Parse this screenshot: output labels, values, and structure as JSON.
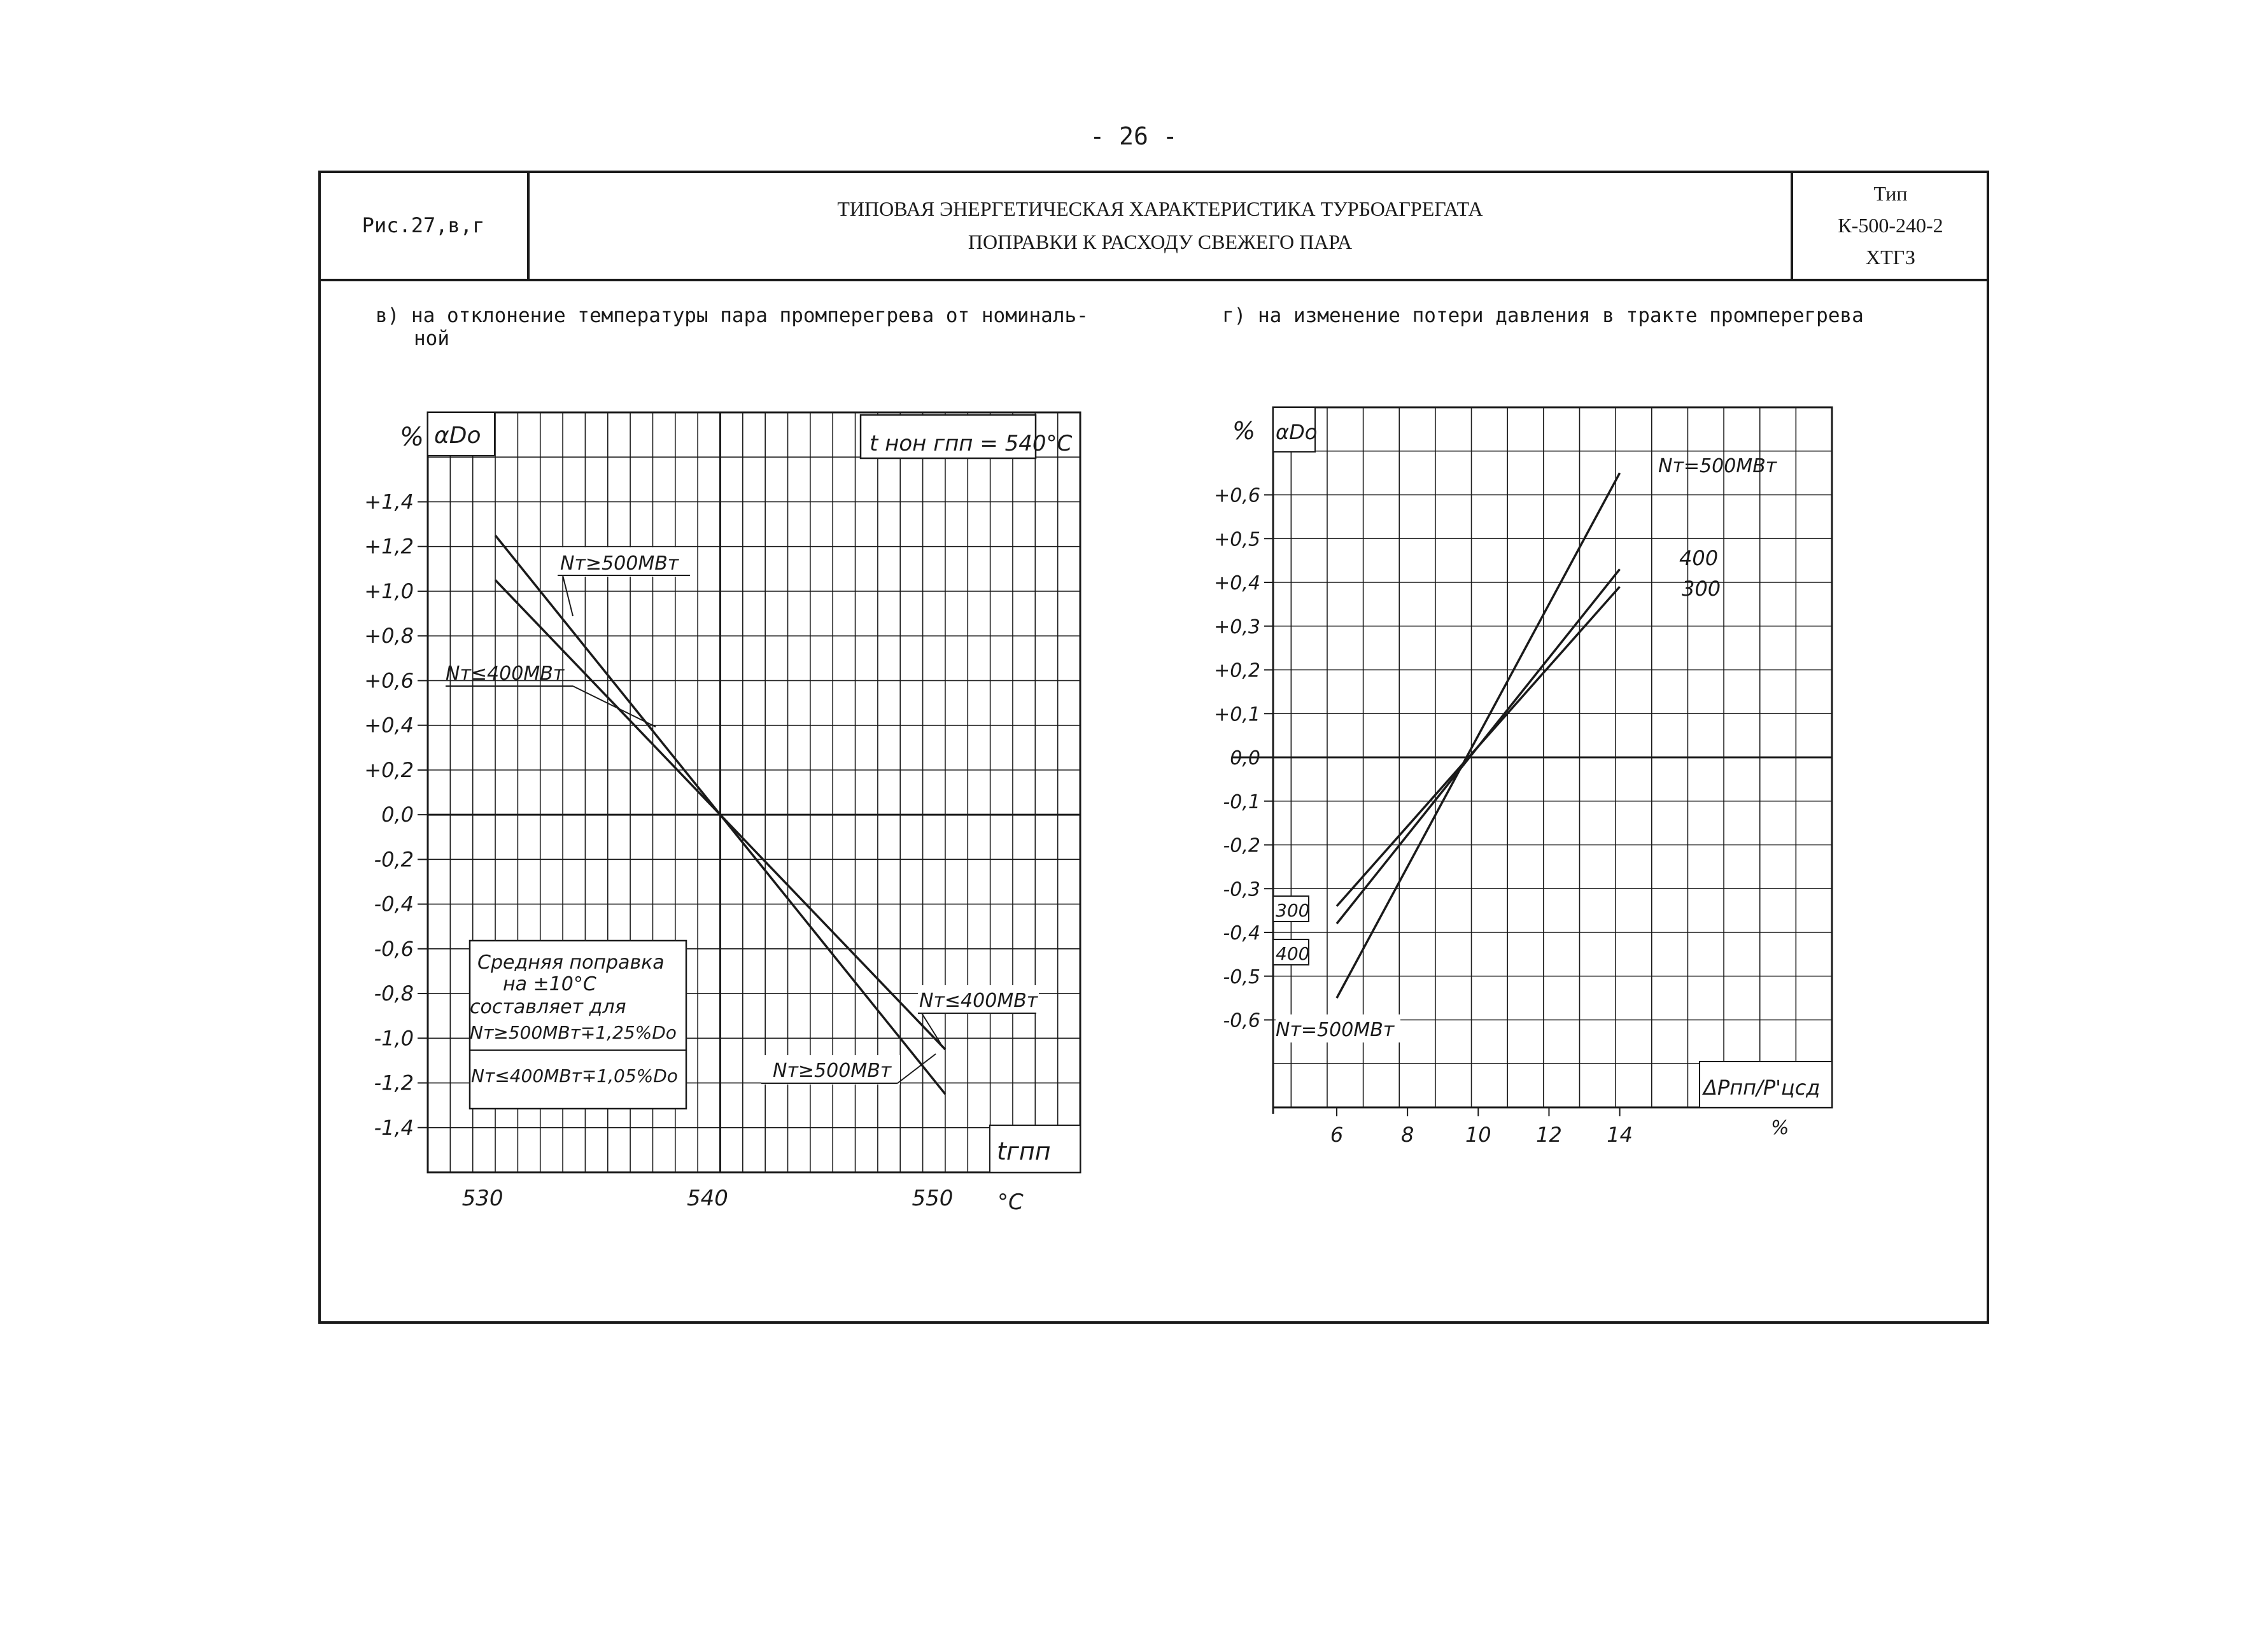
{
  "page_number": "- 26 -",
  "header": {
    "figure_ref": "Рис.27,в,г",
    "title_line1": "ТИПОВАЯ ЭНЕРГЕТИЧЕСКАЯ ХАРАКТЕРИСТИКА ТУРБОАГРЕГАТА",
    "title_line2": "ПОПРАВКИ К РАСХОДУ СВЕЖЕГО ПАРА",
    "type_label": "Тип",
    "type_model": "К-500-240-2",
    "type_maker": "ХТГЗ"
  },
  "captions": {
    "left_line1": "в) на отклонение температуры пара промперегрева от номиналь-",
    "left_line2": "ной",
    "right": "г) на изменение потери давления в тракте промперегрева"
  },
  "chart_data": [
    {
      "type": "line",
      "ylabel_unit": "%",
      "ylabel": "αDo",
      "xlabel": "tгпп",
      "xunit": "°C",
      "nominal_box": "t нон гпп = 540°C",
      "x_ticks": [
        "530",
        "540",
        "550"
      ],
      "y_ticks": [
        "+1,4",
        "+1,2",
        "+1,0",
        "+0,8",
        "+0,6",
        "+0,4",
        "+0,2",
        "0,0",
        "-0,2",
        "-0,4",
        "-0,6",
        "-0,8",
        "-1,0",
        "-1,2",
        "-1,4"
      ],
      "xlim": [
        527,
        556
      ],
      "ylim": [
        -1.6,
        1.8
      ],
      "grid": true,
      "series": [
        {
          "name": "Nт≥500МВт",
          "x": [
            530,
            550
          ],
          "y": [
            1.25,
            -1.25
          ]
        },
        {
          "name": "Nт≤400МВт",
          "x": [
            530,
            550
          ],
          "y": [
            1.05,
            -1.05
          ]
        }
      ],
      "annotations": [
        {
          "label": "Nт≥500МВт"
        },
        {
          "label": "Nт≤400МВт"
        },
        {
          "label": "Nт≤400МВт"
        },
        {
          "label": "Nт≥500МВт"
        }
      ],
      "note_lines": [
        "Средняя поправка",
        "на ±10°С",
        "составляет для",
        "Nт≥500МВт∓1,25%Do",
        "Nт≤400МВт∓1,05%Do"
      ]
    },
    {
      "type": "line",
      "ylabel_unit": "%",
      "ylabel": "αDo",
      "xlabel": "ΔPпп/P'цсд",
      "xunit": "%",
      "x_ticks": [
        "6",
        "8",
        "10",
        "12",
        "14"
      ],
      "y_ticks": [
        "+0,6",
        "+0,5",
        "+0,4",
        "+0,3",
        "+0,2",
        "+0,1",
        "0,0",
        "-0,1",
        "-0,2",
        "-0,3",
        "-0,4",
        "-0,5",
        "-0,6"
      ],
      "xlim": [
        4.2,
        20
      ],
      "ylim": [
        -0.8,
        0.8
      ],
      "grid": true,
      "series": [
        {
          "name": "Nт=500МВт",
          "x": [
            6,
            14
          ],
          "y": [
            -0.55,
            0.65
          ]
        },
        {
          "name": "400",
          "x": [
            6,
            14
          ],
          "y": [
            -0.38,
            0.43
          ]
        },
        {
          "name": "300",
          "x": [
            6,
            14
          ],
          "y": [
            -0.34,
            0.39
          ]
        }
      ],
      "annotations": [
        {
          "label": "Nт=500МВт"
        },
        {
          "label": "400"
        },
        {
          "label": "300"
        },
        {
          "label": "300"
        },
        {
          "label": "400"
        },
        {
          "label": "Nт=500МВт"
        }
      ]
    }
  ]
}
